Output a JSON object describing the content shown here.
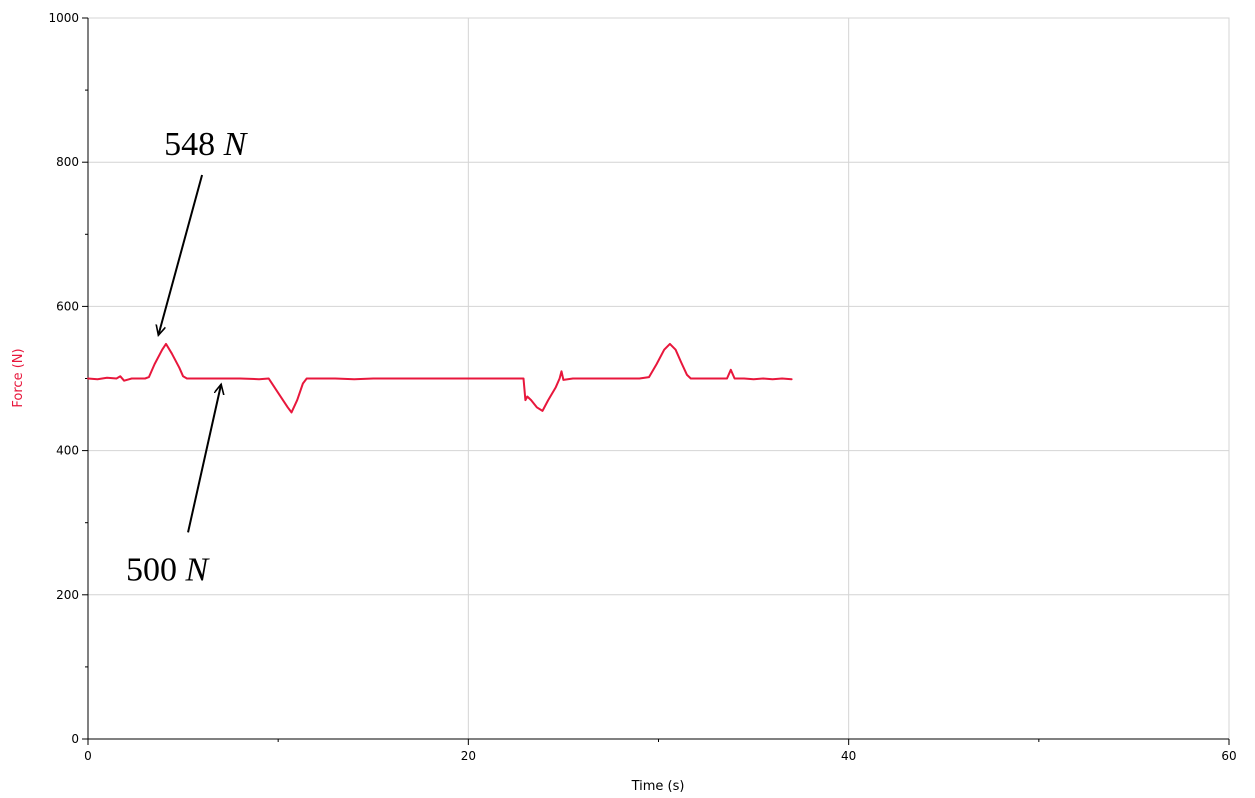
{
  "chart_data": {
    "type": "line",
    "title": "",
    "xlabel": "Time (s)",
    "ylabel": "Force (N)",
    "xlim": [
      0,
      60
    ],
    "ylim": [
      0,
      1000
    ],
    "x_ticks": [
      0,
      20,
      40,
      60
    ],
    "y_ticks": [
      0,
      200,
      400,
      600,
      800,
      1000
    ],
    "x_minor_ticks": [
      10,
      30,
      50
    ],
    "y_minor_ticks": [
      100,
      300,
      500,
      700,
      900
    ],
    "grid": true,
    "colors": {
      "series": "#e8173c",
      "ylabel": "#e8173c",
      "grid": "#d4d4d4",
      "axis": "#000000"
    },
    "series": [
      {
        "values": [
          [
            0.0,
            500
          ],
          [
            0.5,
            499
          ],
          [
            1.0,
            501
          ],
          [
            1.5,
            500
          ],
          [
            1.7,
            503
          ],
          [
            1.9,
            497
          ],
          [
            2.3,
            500
          ],
          [
            3.0,
            500
          ],
          [
            3.2,
            502
          ],
          [
            3.5,
            520
          ],
          [
            3.9,
            540
          ],
          [
            4.1,
            548
          ],
          [
            4.4,
            535
          ],
          [
            4.8,
            515
          ],
          [
            5.0,
            503
          ],
          [
            5.2,
            500
          ],
          [
            6.0,
            500
          ],
          [
            7.0,
            500
          ],
          [
            8.0,
            500
          ],
          [
            9.0,
            499
          ],
          [
            9.5,
            500
          ],
          [
            10.0,
            480
          ],
          [
            10.5,
            460
          ],
          [
            10.7,
            453
          ],
          [
            11.0,
            470
          ],
          [
            11.3,
            493
          ],
          [
            11.5,
            500
          ],
          [
            12.0,
            500
          ],
          [
            13.0,
            500
          ],
          [
            14.0,
            499
          ],
          [
            15.0,
            500
          ],
          [
            16.0,
            500
          ],
          [
            17.0,
            500
          ],
          [
            18.0,
            500
          ],
          [
            19.0,
            500
          ],
          [
            20.0,
            500
          ],
          [
            21.0,
            500
          ],
          [
            22.0,
            500
          ],
          [
            22.9,
            500
          ],
          [
            23.0,
            470
          ],
          [
            23.1,
            475
          ],
          [
            23.3,
            470
          ],
          [
            23.6,
            460
          ],
          [
            23.9,
            455
          ],
          [
            24.2,
            470
          ],
          [
            24.6,
            488
          ],
          [
            24.8,
            500
          ],
          [
            24.9,
            510
          ],
          [
            25.0,
            498
          ],
          [
            25.5,
            500
          ],
          [
            26.0,
            500
          ],
          [
            27.0,
            500
          ],
          [
            28.0,
            500
          ],
          [
            29.0,
            500
          ],
          [
            29.5,
            502
          ],
          [
            29.9,
            520
          ],
          [
            30.3,
            540
          ],
          [
            30.6,
            548
          ],
          [
            30.9,
            540
          ],
          [
            31.2,
            522
          ],
          [
            31.5,
            505
          ],
          [
            31.7,
            500
          ],
          [
            32.0,
            500
          ],
          [
            33.0,
            500
          ],
          [
            33.6,
            500
          ],
          [
            33.8,
            512
          ],
          [
            34.0,
            500
          ],
          [
            34.5,
            500
          ],
          [
            35.0,
            499
          ],
          [
            35.5,
            500
          ],
          [
            36.0,
            499
          ],
          [
            36.5,
            500
          ],
          [
            37.0,
            499
          ]
        ]
      }
    ],
    "annotations": [
      {
        "text_value": "548 ",
        "text_unit": "N",
        "x": 4.0,
        "y": 810,
        "point_x": 3.7,
        "point_y": 560
      },
      {
        "text_value": "500 ",
        "text_unit": "N",
        "x": 2.0,
        "y": 220,
        "point_x": 7.0,
        "point_y": 492
      }
    ]
  }
}
